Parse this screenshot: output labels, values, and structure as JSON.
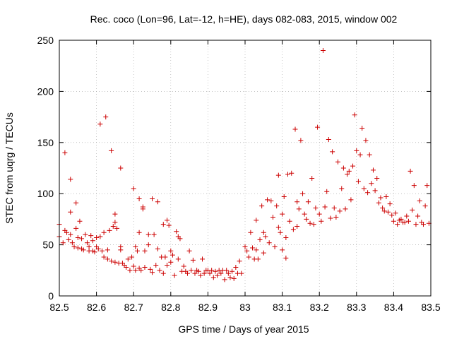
{
  "chart_data": {
    "type": "scatter",
    "title": "Rec. coco (Lon=96, Lat=-12, h=HE), days 082-083, 2015, window 002",
    "xlabel": "GPS time / Days of year 2015",
    "ylabel": "STEC from uqrg / TECUs",
    "xlim": [
      82.5,
      83.5
    ],
    "ylim": [
      0,
      250
    ],
    "x_ticks": [
      82.5,
      82.6,
      82.7,
      82.8,
      82.9,
      83,
      83.1,
      83.2,
      83.3,
      83.4,
      83.5
    ],
    "x_tick_labels": [
      "82.5",
      "82.6",
      "82.7",
      "82.8",
      "82.9",
      "83",
      "83.1",
      "83.2",
      "83.3",
      "83.4",
      "83.5"
    ],
    "y_ticks": [
      0,
      50,
      100,
      150,
      200,
      250
    ],
    "y_tick_labels": [
      "0",
      "50",
      "100",
      "150",
      "200",
      "250"
    ],
    "grid": true,
    "marker": "+",
    "color": "#cc0000",
    "points": [
      [
        82.5,
        70
      ],
      [
        82.5,
        58
      ],
      [
        82.51,
        52
      ],
      [
        82.515,
        140
      ],
      [
        82.515,
        64
      ],
      [
        82.52,
        62
      ],
      [
        82.525,
        55
      ],
      [
        82.53,
        114
      ],
      [
        82.53,
        82
      ],
      [
        82.53,
        60
      ],
      [
        82.535,
        52
      ],
      [
        82.54,
        48
      ],
      [
        82.545,
        91
      ],
      [
        82.545,
        66
      ],
      [
        82.55,
        57
      ],
      [
        82.55,
        47
      ],
      [
        82.555,
        73
      ],
      [
        82.56,
        56
      ],
      [
        82.56,
        46
      ],
      [
        82.565,
        45
      ],
      [
        82.57,
        60
      ],
      [
        82.575,
        52
      ],
      [
        82.58,
        48
      ],
      [
        82.58,
        44
      ],
      [
        82.585,
        59
      ],
      [
        82.59,
        54
      ],
      [
        82.59,
        44
      ],
      [
        82.595,
        43
      ],
      [
        82.6,
        57
      ],
      [
        82.6,
        48
      ],
      [
        82.605,
        46
      ],
      [
        82.61,
        168
      ],
      [
        82.61,
        58
      ],
      [
        82.615,
        44
      ],
      [
        82.62,
        38
      ],
      [
        82.62,
        62
      ],
      [
        82.625,
        175
      ],
      [
        82.63,
        36
      ],
      [
        82.63,
        45
      ],
      [
        82.635,
        64
      ],
      [
        82.64,
        142
      ],
      [
        82.64,
        34
      ],
      [
        82.645,
        68
      ],
      [
        82.65,
        80
      ],
      [
        82.65,
        72
      ],
      [
        82.65,
        33
      ],
      [
        82.655,
        66
      ],
      [
        82.66,
        32
      ],
      [
        82.665,
        125
      ],
      [
        82.665,
        48
      ],
      [
        82.665,
        45
      ],
      [
        82.67,
        32
      ],
      [
        82.675,
        30
      ],
      [
        82.68,
        28
      ],
      [
        82.685,
        36
      ],
      [
        82.69,
        25
      ],
      [
        82.695,
        38
      ],
      [
        82.7,
        105
      ],
      [
        82.7,
        29
      ],
      [
        82.705,
        25
      ],
      [
        82.705,
        48
      ],
      [
        82.71,
        44
      ],
      [
        82.715,
        95
      ],
      [
        82.715,
        62
      ],
      [
        82.715,
        27
      ],
      [
        82.72,
        25
      ],
      [
        82.725,
        87
      ],
      [
        82.725,
        85
      ],
      [
        82.73,
        44
      ],
      [
        82.73,
        28
      ],
      [
        82.74,
        60
      ],
      [
        82.74,
        50
      ],
      [
        82.745,
        26
      ],
      [
        82.75,
        95
      ],
      [
        82.75,
        23
      ],
      [
        82.755,
        60
      ],
      [
        82.76,
        30
      ],
      [
        82.765,
        92
      ],
      [
        82.765,
        46
      ],
      [
        82.77,
        25
      ],
      [
        82.775,
        38
      ],
      [
        82.78,
        70
      ],
      [
        82.78,
        22
      ],
      [
        82.785,
        38
      ],
      [
        82.79,
        74
      ],
      [
        82.79,
        30
      ],
      [
        82.795,
        69
      ],
      [
        82.8,
        44
      ],
      [
        82.8,
        33
      ],
      [
        82.805,
        40
      ],
      [
        82.81,
        20
      ],
      [
        82.815,
        63
      ],
      [
        82.82,
        58
      ],
      [
        82.82,
        36
      ],
      [
        82.825,
        56
      ],
      [
        82.83,
        24
      ],
      [
        82.835,
        29
      ],
      [
        82.84,
        24
      ],
      [
        82.845,
        22
      ],
      [
        82.85,
        44
      ],
      [
        82.855,
        25
      ],
      [
        82.86,
        35
      ],
      [
        82.865,
        22
      ],
      [
        82.87,
        25
      ],
      [
        82.875,
        24
      ],
      [
        82.88,
        20
      ],
      [
        82.885,
        36
      ],
      [
        82.89,
        22
      ],
      [
        82.895,
        25
      ],
      [
        82.9,
        25
      ],
      [
        82.905,
        22
      ],
      [
        82.91,
        25
      ],
      [
        82.915,
        18
      ],
      [
        82.92,
        24
      ],
      [
        82.925,
        20
      ],
      [
        82.93,
        25
      ],
      [
        82.935,
        22
      ],
      [
        82.94,
        25
      ],
      [
        82.945,
        16
      ],
      [
        82.95,
        25
      ],
      [
        82.955,
        22
      ],
      [
        82.96,
        18
      ],
      [
        82.965,
        24
      ],
      [
        82.97,
        17
      ],
      [
        82.975,
        28
      ],
      [
        82.98,
        22
      ],
      [
        82.985,
        34
      ],
      [
        82.99,
        22
      ],
      [
        83.0,
        48
      ],
      [
        83.005,
        44
      ],
      [
        83.01,
        38
      ],
      [
        83.015,
        62
      ],
      [
        83.02,
        47
      ],
      [
        83.025,
        36
      ],
      [
        83.03,
        74
      ],
      [
        83.03,
        45
      ],
      [
        83.035,
        36
      ],
      [
        83.04,
        55
      ],
      [
        83.045,
        88
      ],
      [
        83.05,
        42
      ],
      [
        83.05,
        62
      ],
      [
        83.055,
        58
      ],
      [
        83.06,
        94
      ],
      [
        83.065,
        52
      ],
      [
        83.07,
        93
      ],
      [
        83.075,
        77
      ],
      [
        83.08,
        48
      ],
      [
        83.085,
        88
      ],
      [
        83.09,
        67
      ],
      [
        83.09,
        118
      ],
      [
        83.095,
        62
      ],
      [
        83.1,
        80
      ],
      [
        83.1,
        45
      ],
      [
        83.105,
        97
      ],
      [
        83.11,
        57
      ],
      [
        83.11,
        37
      ],
      [
        83.115,
        119
      ],
      [
        83.12,
        73
      ],
      [
        83.125,
        120
      ],
      [
        83.13,
        65
      ],
      [
        83.135,
        163
      ],
      [
        83.14,
        92
      ],
      [
        83.14,
        68
      ],
      [
        83.145,
        85
      ],
      [
        83.15,
        152
      ],
      [
        83.155,
        100
      ],
      [
        83.16,
        80
      ],
      [
        83.165,
        75
      ],
      [
        83.17,
        92
      ],
      [
        83.175,
        71
      ],
      [
        83.18,
        115
      ],
      [
        83.185,
        70
      ],
      [
        83.19,
        86
      ],
      [
        83.195,
        165
      ],
      [
        83.2,
        80
      ],
      [
        83.205,
        73
      ],
      [
        83.21,
        240
      ],
      [
        83.215,
        87
      ],
      [
        83.22,
        102
      ],
      [
        83.225,
        153
      ],
      [
        83.23,
        76
      ],
      [
        83.235,
        141
      ],
      [
        83.24,
        86
      ],
      [
        83.245,
        77
      ],
      [
        83.25,
        131
      ],
      [
        83.255,
        83
      ],
      [
        83.26,
        105
      ],
      [
        83.265,
        125
      ],
      [
        83.27,
        85
      ],
      [
        83.275,
        119
      ],
      [
        83.28,
        122
      ],
      [
        83.285,
        94
      ],
      [
        83.29,
        127
      ],
      [
        83.295,
        177
      ],
      [
        83.3,
        142
      ],
      [
        83.305,
        112
      ],
      [
        83.31,
        138
      ],
      [
        83.315,
        164
      ],
      [
        83.32,
        105
      ],
      [
        83.325,
        152
      ],
      [
        83.33,
        101
      ],
      [
        83.335,
        138
      ],
      [
        83.34,
        110
      ],
      [
        83.345,
        123
      ],
      [
        83.35,
        103
      ],
      [
        83.355,
        115
      ],
      [
        83.36,
        91
      ],
      [
        83.365,
        96
      ],
      [
        83.37,
        86
      ],
      [
        83.375,
        83
      ],
      [
        83.38,
        97
      ],
      [
        83.385,
        82
      ],
      [
        83.39,
        90
      ],
      [
        83.395,
        79
      ],
      [
        83.4,
        73
      ],
      [
        83.405,
        81
      ],
      [
        83.41,
        70
      ],
      [
        83.415,
        74
      ],
      [
        83.42,
        75
      ],
      [
        83.425,
        72
      ],
      [
        83.43,
        72
      ],
      [
        83.435,
        78
      ],
      [
        83.44,
        73
      ],
      [
        83.445,
        122
      ],
      [
        83.45,
        84
      ],
      [
        83.455,
        108
      ],
      [
        83.46,
        70
      ],
      [
        83.465,
        78
      ],
      [
        83.47,
        93
      ],
      [
        83.475,
        72
      ],
      [
        83.48,
        70
      ],
      [
        83.485,
        88
      ],
      [
        83.49,
        108
      ],
      [
        83.495,
        71
      ]
    ]
  }
}
